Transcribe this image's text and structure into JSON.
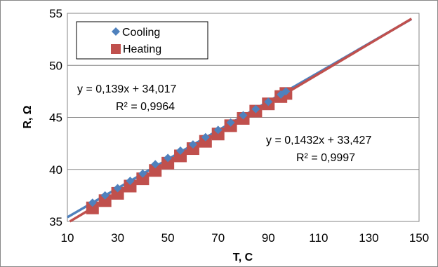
{
  "chart_data": {
    "type": "scatter",
    "xlabel": "T, C",
    "ylabel": "R, Ω",
    "xlim": [
      10,
      150
    ],
    "ylim": [
      35,
      55
    ],
    "x_ticks": [
      "10",
      "30",
      "50",
      "70",
      "90",
      "110",
      "130",
      "150"
    ],
    "y_ticks": [
      "35",
      "40",
      "45",
      "50",
      "55"
    ],
    "grid": "horizontal",
    "legend_position": "top-left",
    "series": [
      {
        "name": "Cooling",
        "marker": "diamond",
        "color": "#4F81BD",
        "x": [
          20,
          25,
          30,
          35,
          40,
          45,
          50,
          55,
          60,
          65,
          70,
          75,
          80,
          85,
          90,
          95,
          97
        ],
        "y": [
          36.8,
          37.5,
          38.2,
          38.9,
          39.6,
          40.5,
          41.1,
          41.8,
          42.4,
          43.1,
          43.8,
          44.5,
          45.2,
          45.8,
          46.5,
          47.2,
          47.5
        ]
      },
      {
        "name": "Heating",
        "marker": "square",
        "color": "#C0504D",
        "x": [
          20,
          25,
          30,
          35,
          40,
          45,
          50,
          55,
          60,
          65,
          70,
          75,
          80,
          85,
          90,
          95,
          97
        ],
        "y": [
          36.3,
          37.0,
          37.7,
          38.4,
          39.1,
          39.9,
          40.6,
          41.3,
          42.0,
          42.7,
          43.4,
          44.2,
          44.9,
          45.6,
          46.3,
          47.0,
          47.3
        ]
      }
    ],
    "trendlines": [
      {
        "series": "Cooling",
        "slope": 0.139,
        "intercept": 34.017,
        "x_range": [
          10,
          147
        ],
        "color": "#4F81BD"
      },
      {
        "series": "Heating",
        "slope": 0.1432,
        "intercept": 33.427,
        "x_range": [
          10,
          147
        ],
        "color": "#C0504D"
      }
    ],
    "annotations": [
      {
        "line1": "y = 0,139x + 34,017",
        "line2": "R² = 0,9964"
      },
      {
        "line1": "y = 0,1432x + 33,427",
        "line2": "R² = 0,9997"
      }
    ]
  }
}
